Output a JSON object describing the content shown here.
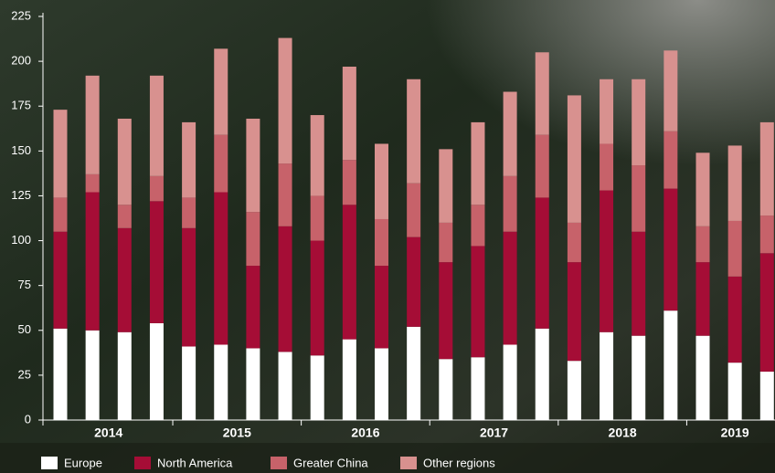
{
  "chart_data": {
    "type": "stacked_bar",
    "categories": [
      null,
      null,
      null,
      null,
      null,
      null,
      null,
      null,
      null,
      null,
      null,
      null,
      null,
      null,
      null,
      null,
      null,
      null,
      null,
      null,
      null,
      null,
      null
    ],
    "year_groups": [
      "2014",
      "2015",
      "2016",
      "2017",
      "2018",
      "2019"
    ],
    "series": [
      {
        "name": "Europe",
        "color": "#ffffff",
        "values": [
          51,
          50,
          49,
          54,
          41,
          42,
          40,
          38,
          36,
          45,
          40,
          52,
          34,
          35,
          42,
          51,
          33,
          49,
          47,
          61,
          47,
          32,
          27
        ]
      },
      {
        "name": "North America",
        "color": "#a50d36",
        "values": [
          54,
          77,
          58,
          68,
          66,
          85,
          46,
          70,
          64,
          75,
          46,
          50,
          54,
          62,
          63,
          73,
          55,
          79,
          58,
          68,
          41,
          48,
          66
        ]
      },
      {
        "name": "Greater China",
        "color": "#c7626a",
        "values": [
          19,
          10,
          13,
          14,
          17,
          32,
          30,
          35,
          25,
          25,
          26,
          30,
          22,
          23,
          31,
          35,
          22,
          26,
          37,
          32,
          20,
          31,
          21
        ]
      },
      {
        "name": "Other regions",
        "color": "#d8918f",
        "values": [
          49,
          55,
          48,
          56,
          42,
          48,
          52,
          70,
          45,
          52,
          42,
          58,
          41,
          46,
          47,
          46,
          71,
          36,
          48,
          45,
          41,
          42,
          52
        ]
      }
    ],
    "ylim": [
      0,
      225
    ],
    "yticks": [
      0,
      25,
      50,
      75,
      100,
      125,
      150,
      175,
      200,
      225
    ],
    "grid": false,
    "legend": "bottom-left"
  }
}
